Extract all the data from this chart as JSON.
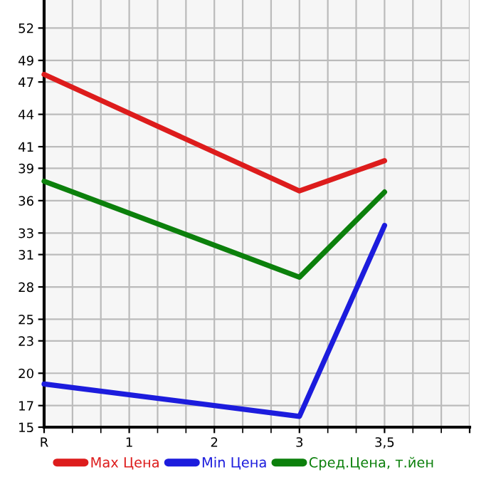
{
  "chart_data": {
    "type": "line",
    "categories": [
      "R",
      "1",
      "2",
      "3",
      "3,5",
      null
    ],
    "ylim": [
      15,
      54.6
    ],
    "yticks": [
      15,
      17,
      20,
      23,
      25,
      28,
      31,
      33,
      36,
      39,
      41,
      44,
      47,
      49,
      52
    ],
    "series": [
      {
        "name": "Max Цена",
        "color": "#dd1c1c",
        "values": [
          47.7,
          null,
          null,
          36.9,
          39.7,
          null
        ]
      },
      {
        "name": "Min Цена",
        "color": "#1c1cdd",
        "values": [
          19.0,
          null,
          null,
          16.0,
          33.7,
          null
        ]
      },
      {
        "name": "Сред.Цена, т.йен",
        "color": "#0c800c",
        "values": [
          37.8,
          null,
          null,
          28.9,
          36.8,
          null
        ]
      }
    ],
    "grid": true,
    "legend": "bottom",
    "marker": "none",
    "line_style": "solid"
  }
}
